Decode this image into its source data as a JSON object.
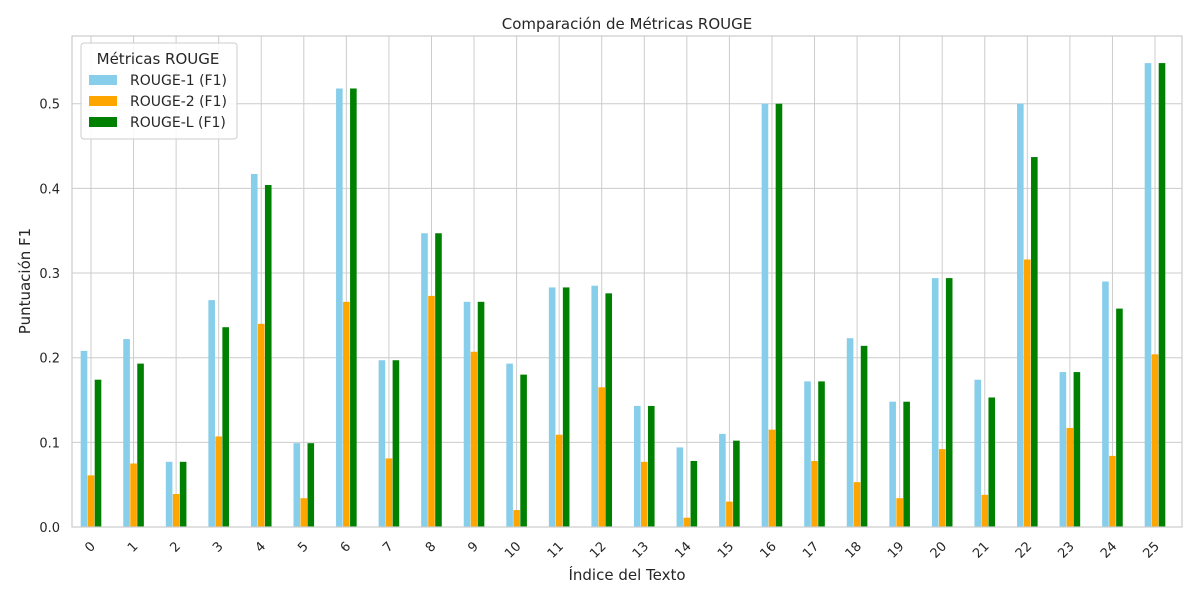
{
  "chart_data": {
    "type": "bar",
    "title": "Comparación de Métricas ROUGE",
    "xlabel": "Índice del Texto",
    "ylabel": "Puntuación F1",
    "ylim": [
      0,
      0.58
    ],
    "yticks": [
      "0.0",
      "0.1",
      "0.2",
      "0.3",
      "0.4",
      "0.5"
    ],
    "grid": true,
    "legend": {
      "title": "Métricas ROUGE",
      "placement": "top-left"
    },
    "categories": [
      "0",
      "1",
      "2",
      "3",
      "4",
      "5",
      "6",
      "7",
      "8",
      "9",
      "10",
      "11",
      "12",
      "13",
      "14",
      "15",
      "16",
      "17",
      "18",
      "19",
      "20",
      "21",
      "22",
      "23",
      "24",
      "25"
    ],
    "series": [
      {
        "name": "ROUGE-1 (F1)",
        "color": "#87ceeb",
        "values": [
          0.208,
          0.222,
          0.077,
          0.268,
          0.417,
          0.099,
          0.518,
          0.197,
          0.347,
          0.266,
          0.193,
          0.283,
          0.285,
          0.143,
          0.094,
          0.11,
          0.5,
          0.172,
          0.223,
          0.148,
          0.294,
          0.174,
          0.5,
          0.183,
          0.29,
          0.548
        ]
      },
      {
        "name": "ROUGE-2 (F1)",
        "color": "#ffa500",
        "values": [
          0.061,
          0.075,
          0.039,
          0.107,
          0.24,
          0.034,
          0.266,
          0.081,
          0.273,
          0.207,
          0.02,
          0.109,
          0.165,
          0.077,
          0.011,
          0.03,
          0.115,
          0.078,
          0.053,
          0.034,
          0.092,
          0.038,
          0.316,
          0.117,
          0.084,
          0.204
        ]
      },
      {
        "name": "ROUGE-L (F1)",
        "color": "#008000",
        "values": [
          0.174,
          0.193,
          0.077,
          0.236,
          0.404,
          0.099,
          0.518,
          0.197,
          0.347,
          0.266,
          0.18,
          0.283,
          0.276,
          0.143,
          0.078,
          0.102,
          0.5,
          0.172,
          0.214,
          0.148,
          0.294,
          0.153,
          0.437,
          0.183,
          0.258,
          0.548
        ]
      }
    ]
  }
}
